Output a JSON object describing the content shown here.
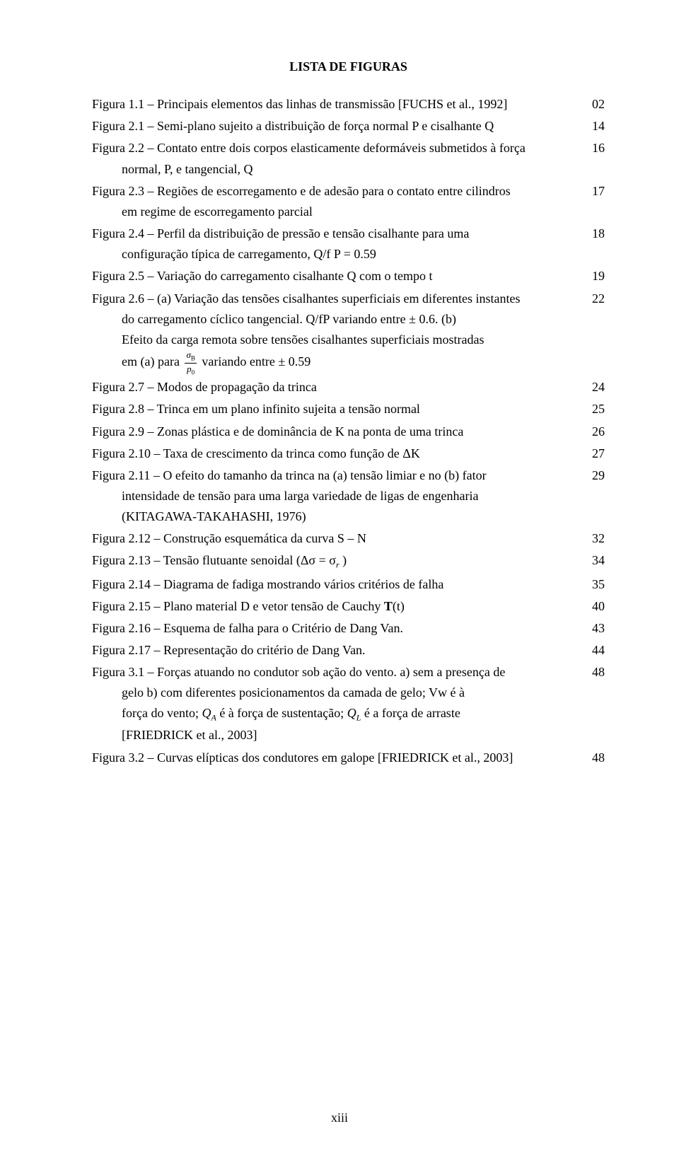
{
  "title": "LISTA DE FIGURAS",
  "entries": [
    {
      "text": "Figura 1.1 – Principais elementos das linhas de transmissão [FUCHS et al., 1992]",
      "page": "02",
      "indent_cont": false
    },
    {
      "text": "Figura 2.1 – Semi-plano sujeito a distribuição de força normal P e cisalhante Q",
      "page": "14",
      "indent_cont": false
    },
    {
      "text": "Figura 2.2 – Contato entre dois corpos elasticamente deformáveis submetidos à força",
      "cont": [
        "normal, P, e tangencial, Q"
      ],
      "page": "16"
    },
    {
      "text": "Figura 2.3 – Regiões de escorregamento e de adesão para o contato entre cilindros",
      "cont": [
        "em regime de escorregamento parcial"
      ],
      "page": "17"
    },
    {
      "text": "Figura 2.4 – Perfil da distribuição de pressão e tensão cisalhante para uma",
      "cont": [
        "configuração típica de carregamento, Q/f P = 0.59"
      ],
      "page": "18"
    },
    {
      "text": "Figura 2.5 – Variação do carregamento cisalhante Q com o tempo t",
      "page": "19"
    },
    {
      "text": "Figura 2.6 – (a) Variação das tensões cisalhantes superficiais em diferentes instantes",
      "cont": [
        "do carregamento cíclico tangencial. Q/fP variando entre ± 0.6. (b)",
        "Efeito da carga remota sobre tensões cisalhantes superficiais mostradas",
        "em (a) para {FRAC} variando entre ± 0.59"
      ],
      "page": "22",
      "has_frac": true,
      "frac_num": "σ_B",
      "frac_den": "p₀"
    },
    {
      "text": "Figura 2.7 – Modos de propagação da trinca",
      "page": "24"
    },
    {
      "text": "Figura 2.8 – Trinca em um plano infinito sujeita a tensão normal",
      "page": "25"
    },
    {
      "text": "Figura 2.9 – Zonas plástica e de dominância de K na ponta de uma trinca",
      "page": "26"
    },
    {
      "text": "Figura 2.10 – Taxa de crescimento da trinca como função de ΔK",
      "page": "27"
    },
    {
      "text": "Figura 2.11 – O efeito do tamanho da trinca na (a) tensão limiar e no (b) fator",
      "cont": [
        "intensidade de tensão para uma larga variedade de ligas de engenharia",
        "(KITAGAWA-TAKAHASHI, 1976)"
      ],
      "page": "29"
    },
    {
      "text": "Figura 2.12 – Construção esquemática da curva S – N",
      "page": "32"
    },
    {
      "text_html": "Figura 2.13 – Tensão flutuante senoidal (Δσ = σ<sub class=\"sub-italic\">r</sub> )",
      "page": "34"
    },
    {
      "text": "Figura 2.14 – Diagrama de fadiga mostrando vários critérios de falha",
      "page": "35"
    },
    {
      "text_html": "Figura 2.15 – Plano  material D e vetor tensão de Cauchy <b>T</b>(t)",
      "page": "40"
    },
    {
      "text": "Figura 2.16 – Esquema de falha para o Critério de Dang Van.",
      "page": "43"
    },
    {
      "text": "Figura 2.17 – Representação do critério de Dang Van.",
      "page": "44"
    },
    {
      "text": "Figura 3.1 – Forças atuando no condutor sob ação do vento. a) sem a presença de",
      "cont_html": [
        "gelo b) com diferentes posicionamentos da camada de gelo; Vw é à",
        "força do vento; <span class=\"qforce\">Q<sub>A</sub></span> é à força de sustentação; <span class=\"qforce\">Q<sub>L</sub></span> é a força de arraste",
        "[FRIEDRICK et al., 2003]"
      ],
      "page": "48"
    },
    {
      "text": "Figura 3.2 – Curvas elípticas dos condutores em galope [FRIEDRICK et al., 2003]",
      "page": "48"
    }
  ],
  "footer": "xiii"
}
